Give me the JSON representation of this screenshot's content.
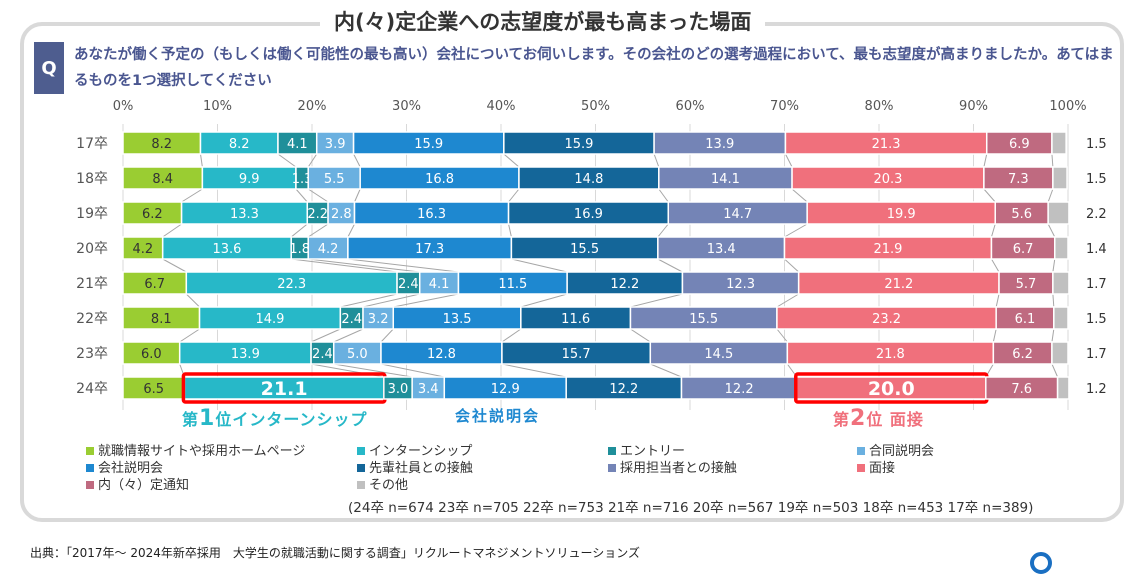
{
  "title": "内(々)定企業への志望度が最も高まった場面",
  "question": {
    "badge": "Q",
    "text": "あなたが働く予定の（もしくは働く可能性の最も高い）会社についてお伺いします。その会社のどの選考過程において、最も志望度が高まりましたか。あてはまるものを1つ選択してください"
  },
  "chart_data": {
    "type": "bar",
    "orientation": "horizontal",
    "stacked": "100%",
    "title": "内(々)定企業への志望度が最も高まった場面",
    "xlabel": "",
    "ylabel": "",
    "xlim": [
      0,
      100
    ],
    "x_ticks": [
      "0%",
      "10%",
      "20%",
      "30%",
      "40%",
      "50%",
      "60%",
      "70%",
      "80%",
      "90%",
      "100%"
    ],
    "grid": true,
    "legend_position": "bottom",
    "categories": [
      "17卒",
      "18卒",
      "19卒",
      "20卒",
      "21卒",
      "22卒",
      "23卒",
      "24卒"
    ],
    "series": [
      {
        "name": "就職情報サイトや採用ホームページ",
        "color": "#9acd32",
        "label_color": "#333333",
        "values": [
          8.2,
          8.4,
          6.2,
          4.2,
          6.7,
          8.1,
          6.0,
          6.5
        ]
      },
      {
        "name": "インターンシップ",
        "color": "#27b8c8",
        "label_color": "#ffffff",
        "values": [
          8.2,
          9.9,
          13.3,
          13.6,
          22.3,
          14.9,
          13.9,
          21.1
        ]
      },
      {
        "name": "エントリー",
        "color": "#1f8f9a",
        "label_color": "#ffffff",
        "values": [
          4.1,
          1.3,
          2.2,
          1.8,
          2.4,
          2.4,
          2.4,
          3.0
        ]
      },
      {
        "name": "合同説明会",
        "color": "#6ab0e0",
        "label_color": "#ffffff",
        "values": [
          3.9,
          5.5,
          2.8,
          4.2,
          4.1,
          3.2,
          5.0,
          3.4
        ]
      },
      {
        "name": "会社説明会",
        "color": "#1e88d0",
        "label_color": "#ffffff",
        "values": [
          15.9,
          16.8,
          16.3,
          17.3,
          11.5,
          13.5,
          12.8,
          12.9
        ]
      },
      {
        "name": "先輩社員との接触",
        "color": "#146699",
        "label_color": "#ffffff",
        "values": [
          15.9,
          14.8,
          16.9,
          15.5,
          12.2,
          11.6,
          15.7,
          12.2
        ]
      },
      {
        "name": "採用担当者との接触",
        "color": "#7484b6",
        "label_color": "#ffffff",
        "values": [
          13.9,
          14.1,
          14.7,
          13.4,
          12.3,
          15.5,
          14.5,
          12.2
        ]
      },
      {
        "name": "面接",
        "color": "#f0707c",
        "label_color": "#ffffff",
        "values": [
          21.3,
          20.3,
          19.9,
          21.9,
          21.2,
          23.2,
          21.8,
          20.0
        ]
      },
      {
        "name": "内（々）定通知",
        "color": "#bf6a80",
        "label_color": "#ffffff",
        "values": [
          6.9,
          7.3,
          5.6,
          6.7,
          5.7,
          6.1,
          6.2,
          7.6
        ]
      },
      {
        "name": "その他",
        "color": "#c0c0c0",
        "label_color": "#333333",
        "values": [
          1.5,
          1.5,
          2.2,
          1.4,
          1.7,
          1.5,
          1.7,
          1.2
        ]
      }
    ],
    "highlights": [
      {
        "category": "24卒",
        "series": "インターンシップ",
        "value": 21.1,
        "color": "#ff0000"
      },
      {
        "category": "24卒",
        "series": "面接",
        "value": 20.0,
        "color": "#ff0000"
      }
    ],
    "annotations": [
      {
        "text_parts": [
          "第",
          "1",
          "位インターンシップ"
        ],
        "color": "#27b8c8"
      },
      {
        "text_parts": [
          "会社説明会"
        ],
        "color": "#1e88d0"
      },
      {
        "text_parts": [
          "第",
          "2",
          "位 面接"
        ],
        "color": "#f0707c"
      }
    ],
    "sample_sizes": "(24卒 n=674 23卒 n=705 22卒 n=753 21卒 n=716 20卒 n=567 19卒 n=503 18卒 n=453 17卒 n=389)"
  },
  "source": "出典：「2017年～ 2024年新卒採用　大学生の就職活動に関する調査」リクルートマネジメントソリューションズ"
}
